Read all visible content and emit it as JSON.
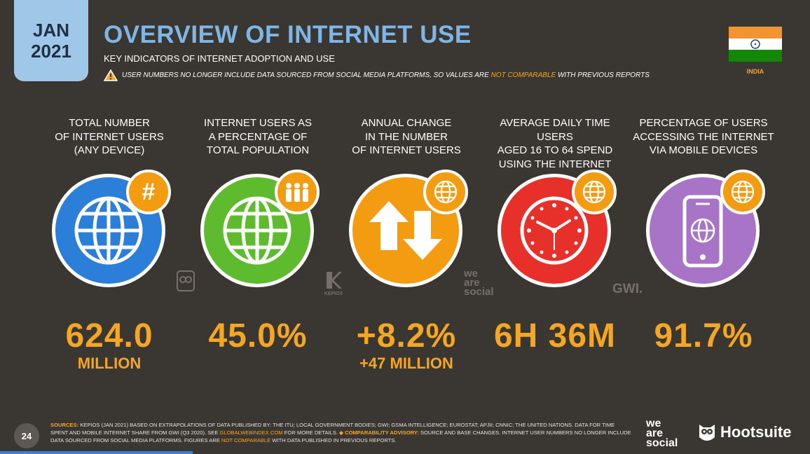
{
  "header": {
    "badge_month": "JAN",
    "badge_year": "2021",
    "title": "OVERVIEW OF INTERNET USE",
    "subtitle": "KEY INDICATORS OF INTERNET ADOPTION AND USE",
    "warning_pre": "USER NUMBERS NO LONGER INCLUDE DATA SOURCED FROM SOCIAL MEDIA PLATFORMS, SO VALUES ARE ",
    "warning_highlight": "NOT COMPARABLE",
    "warning_post": " WITH PREVIOUS REPORTS",
    "country": "INDIA"
  },
  "metrics": [
    {
      "label": "TOTAL NUMBER\nOF INTERNET USERS\n(ANY DEVICE)",
      "value": "624.0",
      "sub": "MILLION",
      "color": "#2c7fd8",
      "icon": "globe-icon",
      "badge_icon": "hash-icon"
    },
    {
      "label": "INTERNET USERS AS\nA PERCENTAGE OF\nTOTAL POPULATION",
      "value": "45.0%",
      "sub": "",
      "color": "#5dbb2d",
      "icon": "globe-icon",
      "badge_icon": "people-icon"
    },
    {
      "label": "ANNUAL CHANGE\nIN THE NUMBER\nOF INTERNET USERS",
      "value": "+8.2%",
      "sub": "+47 MILLION",
      "color": "#f39c12",
      "icon": "up-down-arrows-icon",
      "badge_icon": "globe-icon"
    },
    {
      "label": "AVERAGE DAILY TIME USERS\nAGED 16 TO 64 SPEND\nUSING THE INTERNET",
      "value": "6H 36M",
      "sub": "",
      "color": "#e8302a",
      "icon": "clock-icon",
      "badge_icon": "globe-icon"
    },
    {
      "label": "PERCENTAGE OF USERS\nACCESSING THE INTERNET\nVIA MOBILE DEVICES",
      "value": "91.7%",
      "sub": "",
      "color": "#a774c8",
      "icon": "mobile-phone-icon",
      "badge_icon": "globe-icon"
    }
  ],
  "watermarks": {
    "kepios": "KEPIOS",
    "was": "we\nare\nsocial",
    "gwi": "GWI."
  },
  "footer": {
    "page_number": "24",
    "sources_label": "SOURCES:",
    "sources_text_1": " KEPIOS (JAN 2021) BASED ON EXTRAPOLATIONS OF DATA PUBLISHED BY: THE ITU; LOCAL GOVERNMENT BODIES; GWI; GSMA INTELLIGENCE; EUROSTAT; APJII; CNNIC; THE UNITED NATIONS. DATA FOR TIME SPENT AND MOBILE INTERNET SHARE FROM GWI (Q3 2020). SEE ",
    "sources_link": "GLOBALWEBINDEX.COM",
    "sources_text_2": " FOR MORE DETAILS. ",
    "advisory_label": "◆ COMPARABILITY ADVISORY:",
    "advisory_text_1": " SOURCE AND BASE CHANGES. INTERNET USER NUMBERS NO LONGER INCLUDE DATA SOURCED FROM SOCIAL MEDIA PLATFORMS. FIGURES ARE ",
    "advisory_highlight": "NOT COMPARABLE",
    "advisory_text_2": " WITH DATA PUBLISHED IN PREVIOUS REPORTS.",
    "logo_was": "we\nare\nsocial",
    "logo_hootsuite": "Hootsuite"
  }
}
